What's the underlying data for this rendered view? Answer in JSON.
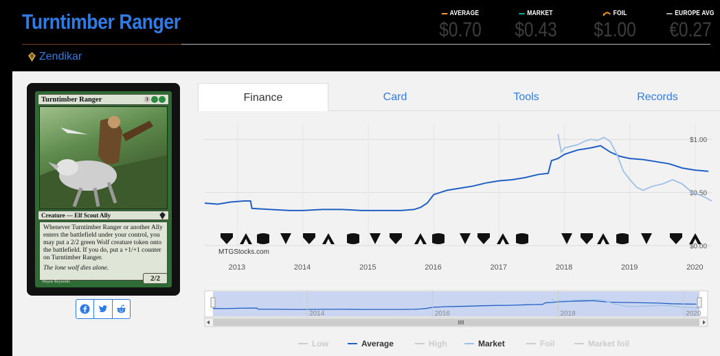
{
  "header": {
    "title": "Turntimber Ranger",
    "set_name": "Zendikar",
    "stats": [
      {
        "label": "AVERAGE",
        "value": "$0.70",
        "color": "#f0a020"
      },
      {
        "label": "MARKET",
        "value": "$0.43",
        "color": "#1aa39a"
      },
      {
        "label": "FOIL",
        "value": "$1.00",
        "color": "#f0a020"
      },
      {
        "label": "EUROPE AVG",
        "value": "€0.27",
        "color": "#aaaaaa"
      }
    ]
  },
  "card": {
    "name": "Turntimber Ranger",
    "mana_generic": "3",
    "type_line": "Creature — Elf Scout Ally",
    "rules_text": "Whenever Turntimber Ranger or another Ally enters the battlefield under your control, you may put a 2/2 green Wolf creature token onto the battlefield. If you do, put a +1/+1 counter on Turntimber Ranger.",
    "flavor_text": "The lone wolf dies alone.",
    "power_toughness": "2/2",
    "artist": "Wayne Reynolds"
  },
  "share": {
    "icons": [
      "facebook-icon",
      "twitter-icon",
      "reddit-icon"
    ]
  },
  "tabs": [
    {
      "label": "Finance",
      "active": true
    },
    {
      "label": "Card",
      "active": false
    },
    {
      "label": "Tools",
      "active": false
    },
    {
      "label": "Records",
      "active": false
    }
  ],
  "chart_data": {
    "type": "line",
    "credit": "MTGStocks.com",
    "x_ticks": [
      "2013",
      "2014",
      "2015",
      "2016",
      "2017",
      "2018",
      "2019",
      "2020"
    ],
    "y_ticks": [
      "$0.00",
      "$0.50",
      "$1.00"
    ],
    "ylim": [
      0,
      1.15
    ],
    "xlim": [
      2012.5,
      2020.25
    ],
    "navigator_ticks": [
      "2014",
      "2016",
      "2018",
      "2020"
    ],
    "grid": true,
    "legend_position": "bottom",
    "legend": [
      {
        "name": "Low",
        "active": false
      },
      {
        "name": "Average",
        "active": true
      },
      {
        "name": "High",
        "active": false
      },
      {
        "name": "Market",
        "active": true
      },
      {
        "name": "Foil",
        "active": false
      },
      {
        "name": "Market foil",
        "active": false
      }
    ],
    "series": [
      {
        "name": "Average",
        "color": "#1f5fc4",
        "points": [
          [
            2012.5,
            0.4
          ],
          [
            2012.7,
            0.39
          ],
          [
            2012.9,
            0.41
          ],
          [
            2013.1,
            0.42
          ],
          [
            2013.2,
            0.42
          ],
          [
            2013.22,
            0.35
          ],
          [
            2013.5,
            0.34
          ],
          [
            2013.8,
            0.33
          ],
          [
            2014.0,
            0.33
          ],
          [
            2014.3,
            0.34
          ],
          [
            2014.6,
            0.34
          ],
          [
            2014.9,
            0.33
          ],
          [
            2015.2,
            0.33
          ],
          [
            2015.5,
            0.33
          ],
          [
            2015.7,
            0.34
          ],
          [
            2015.8,
            0.36
          ],
          [
            2015.9,
            0.4
          ],
          [
            2016.0,
            0.48
          ],
          [
            2016.2,
            0.52
          ],
          [
            2016.4,
            0.54
          ],
          [
            2016.6,
            0.56
          ],
          [
            2016.8,
            0.59
          ],
          [
            2017.0,
            0.61
          ],
          [
            2017.2,
            0.62
          ],
          [
            2017.4,
            0.64
          ],
          [
            2017.6,
            0.67
          ],
          [
            2017.75,
            0.68
          ],
          [
            2017.8,
            0.8
          ],
          [
            2017.9,
            0.82
          ],
          [
            2018.0,
            0.86
          ],
          [
            2018.2,
            0.9
          ],
          [
            2018.4,
            0.92
          ],
          [
            2018.55,
            0.94
          ],
          [
            2018.7,
            0.88
          ],
          [
            2018.85,
            0.84
          ],
          [
            2019.0,
            0.82
          ],
          [
            2019.2,
            0.81
          ],
          [
            2019.4,
            0.79
          ],
          [
            2019.6,
            0.77
          ],
          [
            2019.8,
            0.73
          ],
          [
            2020.0,
            0.71
          ],
          [
            2020.2,
            0.7
          ]
        ]
      },
      {
        "name": "Market",
        "color": "#9ec0e6",
        "points": [
          [
            2017.9,
            1.05
          ],
          [
            2017.95,
            0.88
          ],
          [
            2018.0,
            0.92
          ],
          [
            2018.2,
            0.95
          ],
          [
            2018.3,
            0.98
          ],
          [
            2018.4,
            1.0
          ],
          [
            2018.5,
            0.99
          ],
          [
            2018.6,
            1.02
          ],
          [
            2018.7,
            0.98
          ],
          [
            2018.8,
            0.86
          ],
          [
            2018.9,
            0.7
          ],
          [
            2019.0,
            0.62
          ],
          [
            2019.1,
            0.55
          ],
          [
            2019.2,
            0.52
          ],
          [
            2019.35,
            0.56
          ],
          [
            2019.5,
            0.58
          ],
          [
            2019.65,
            0.62
          ],
          [
            2019.8,
            0.58
          ],
          [
            2019.95,
            0.5
          ],
          [
            2020.1,
            0.47
          ],
          [
            2020.25,
            0.42
          ]
        ]
      }
    ]
  }
}
